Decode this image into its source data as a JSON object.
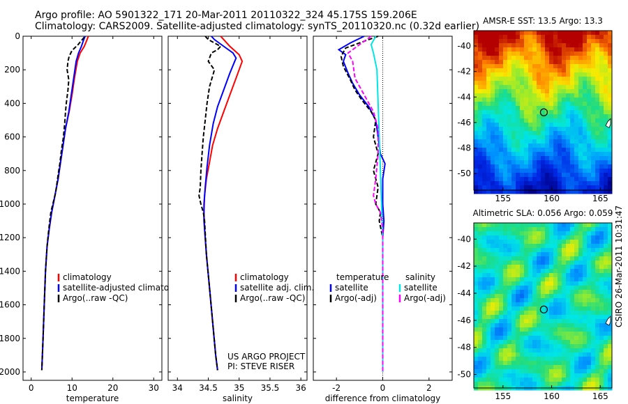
{
  "header": {
    "line1": "Argo profile: AO 5901322_171 20-Mar-2011 20110322_324 45.175S 159.206E",
    "line2": "Climatology: CARS2009. Satellite-adjusted climatology: synTS_20110320.nc (0.32d earlier)"
  },
  "side_label": "CSIRO 26-Mar-2011 10:31:47",
  "colors": {
    "climatology": "#ff0000",
    "satellite": "#0000ff",
    "argo": "#000000",
    "sal_satellite": "#00e5e5",
    "sal_argo": "#ff00ff"
  },
  "chart_data": [
    {
      "type": "line",
      "xlabel": "temperature",
      "xlim": [
        -2,
        32
      ],
      "xticks": [
        "0",
        "10",
        "20",
        "30"
      ],
      "ylim": [
        2050,
        0
      ],
      "yticks": [
        "0",
        "200",
        "400",
        "600",
        "800",
        "1000",
        "1200",
        "1400",
        "1600",
        "1800",
        "2000"
      ],
      "legend": [
        "climatology",
        "satellite-adjusted climatology",
        "Argo(..raw -QC)"
      ],
      "series": [
        {
          "name": "climatology",
          "color": "#ff0000",
          "dash": false,
          "points": [
            [
              14.0,
              0
            ],
            [
              13.6,
              25
            ],
            [
              13.0,
              60
            ],
            [
              12.0,
              100
            ],
            [
              11.3,
              150
            ],
            [
              10.6,
              250
            ],
            [
              10.0,
              350
            ],
            [
              9.3,
              450
            ],
            [
              8.4,
              550
            ],
            [
              7.8,
              650
            ],
            [
              7.2,
              750
            ],
            [
              6.6,
              850
            ],
            [
              5.8,
              950
            ],
            [
              5.0,
              1050
            ],
            [
              4.4,
              1150
            ],
            [
              3.9,
              1250
            ],
            [
              3.5,
              1400
            ],
            [
              3.2,
              1600
            ],
            [
              2.9,
              1800
            ],
            [
              2.6,
              1990
            ]
          ]
        },
        {
          "name": "satellite-adjusted climatology",
          "color": "#0000ff",
          "dash": false,
          "points": [
            [
              13.2,
              0
            ],
            [
              12.8,
              25
            ],
            [
              12.3,
              60
            ],
            [
              11.6,
              100
            ],
            [
              11.0,
              150
            ],
            [
              10.4,
              250
            ],
            [
              9.8,
              350
            ],
            [
              9.2,
              450
            ],
            [
              8.4,
              550
            ],
            [
              7.8,
              650
            ],
            [
              7.2,
              750
            ],
            [
              6.6,
              850
            ],
            [
              5.8,
              950
            ],
            [
              5.0,
              1050
            ],
            [
              4.4,
              1150
            ],
            [
              3.9,
              1250
            ],
            [
              3.5,
              1400
            ],
            [
              3.2,
              1600
            ],
            [
              2.9,
              1800
            ],
            [
              2.6,
              1990
            ]
          ]
        },
        {
          "name": "Argo(..raw -QC)",
          "color": "#000000",
          "dash": true,
          "points": [
            [
              13.0,
              5
            ],
            [
              11.5,
              50
            ],
            [
              10.0,
              85
            ],
            [
              9.3,
              120
            ],
            [
              9.0,
              150
            ],
            [
              8.8,
              200
            ],
            [
              9.2,
              260
            ],
            [
              9.0,
              320
            ],
            [
              8.6,
              400
            ],
            [
              8.4,
              450
            ],
            [
              8.2,
              520
            ],
            [
              7.9,
              600
            ],
            [
              7.4,
              680
            ],
            [
              7.0,
              760
            ],
            [
              6.5,
              840
            ],
            [
              6.0,
              930
            ],
            [
              5.3,
              1000
            ],
            [
              4.8,
              1050
            ],
            [
              4.3,
              1150
            ],
            [
              3.9,
              1250
            ],
            [
              3.5,
              1400
            ],
            [
              3.2,
              1600
            ],
            [
              2.9,
              1800
            ],
            [
              2.6,
              1990
            ]
          ]
        }
      ]
    },
    {
      "type": "line",
      "xlabel": "salinity",
      "xlim": [
        33.85,
        36.1
      ],
      "xticks": [
        "34",
        "34.5",
        "35",
        "35.5",
        "36"
      ],
      "ylim": [
        2050,
        0
      ],
      "legend": [
        "climatology",
        "satellite adj. clim.",
        "Argo(..raw -QC)"
      ],
      "annotation": [
        "US ARGO PROJECT",
        "PI: STEVE RISER"
      ],
      "series": [
        {
          "name": "climatology",
          "color": "#ff0000",
          "dash": false,
          "points": [
            [
              34.7,
              0
            ],
            [
              34.75,
              20
            ],
            [
              34.85,
              60
            ],
            [
              35.0,
              110
            ],
            [
              35.05,
              150
            ],
            [
              34.95,
              250
            ],
            [
              34.85,
              350
            ],
            [
              34.75,
              450
            ],
            [
              34.65,
              550
            ],
            [
              34.57,
              650
            ],
            [
              34.52,
              750
            ],
            [
              34.47,
              850
            ],
            [
              34.44,
              950
            ],
            [
              34.43,
              1050
            ],
            [
              34.44,
              1150
            ],
            [
              34.47,
              1300
            ],
            [
              34.52,
              1500
            ],
            [
              34.57,
              1700
            ],
            [
              34.62,
              1900
            ],
            [
              34.65,
              1990
            ]
          ]
        },
        {
          "name": "satellite adj. clim.",
          "color": "#0000ff",
          "dash": false,
          "points": [
            [
              34.55,
              0
            ],
            [
              34.6,
              20
            ],
            [
              34.75,
              60
            ],
            [
              34.9,
              100
            ],
            [
              34.95,
              130
            ],
            [
              34.85,
              220
            ],
            [
              34.75,
              320
            ],
            [
              34.65,
              420
            ],
            [
              34.58,
              520
            ],
            [
              34.52,
              650
            ],
            [
              34.48,
              780
            ],
            [
              34.45,
              900
            ],
            [
              34.43,
              1000
            ],
            [
              34.43,
              1100
            ],
            [
              34.45,
              1200
            ],
            [
              34.47,
              1300
            ],
            [
              34.52,
              1500
            ],
            [
              34.57,
              1700
            ],
            [
              34.62,
              1900
            ],
            [
              34.65,
              1990
            ]
          ]
        },
        {
          "name": "Argo(..raw -QC)",
          "color": "#000000",
          "dash": true,
          "points": [
            [
              34.45,
              0
            ],
            [
              34.5,
              20
            ],
            [
              34.7,
              60
            ],
            [
              34.65,
              80
            ],
            [
              34.55,
              100
            ],
            [
              34.5,
              150
            ],
            [
              34.6,
              200
            ],
            [
              34.52,
              300
            ],
            [
              34.48,
              400
            ],
            [
              34.45,
              500
            ],
            [
              34.42,
              600
            ],
            [
              34.4,
              700
            ],
            [
              34.38,
              800
            ],
            [
              34.37,
              900
            ],
            [
              34.35,
              950
            ],
            [
              34.38,
              1000
            ],
            [
              34.42,
              1050
            ],
            [
              34.44,
              1100
            ],
            [
              34.47,
              1300
            ],
            [
              34.52,
              1500
            ],
            [
              34.57,
              1700
            ],
            [
              34.62,
              1900
            ],
            [
              34.65,
              1990
            ]
          ]
        }
      ]
    },
    {
      "type": "line",
      "xlabel": "difference from climatology",
      "xlim": [
        -3.0,
        3.0
      ],
      "xticks": [
        "-2",
        "0",
        "2"
      ],
      "ylim": [
        2050,
        0
      ],
      "legend_groups": [
        {
          "title": "temperature",
          "items": [
            "satellite",
            "Argo(-adj)"
          ]
        },
        {
          "title": "salinity",
          "items": [
            "satellite",
            "Argo(-adj)"
          ]
        }
      ],
      "series": [
        {
          "name": "satellite",
          "group": "temperature",
          "color": "#0000ff",
          "dash": false,
          "points": [
            [
              -0.8,
              0
            ],
            [
              -1.4,
              40
            ],
            [
              -1.9,
              80
            ],
            [
              -1.6,
              110
            ],
            [
              -1.7,
              150
            ],
            [
              -1.5,
              220
            ],
            [
              -1.3,
              280
            ],
            [
              -1.0,
              350
            ],
            [
              -0.6,
              420
            ],
            [
              -0.3,
              500
            ],
            [
              -0.2,
              600
            ],
            [
              -0.1,
              700
            ],
            [
              0.1,
              760
            ],
            [
              0.0,
              850
            ],
            [
              0.0,
              1000
            ],
            [
              0.05,
              1100
            ],
            [
              0.0,
              1200
            ],
            [
              0.0,
              1500
            ],
            [
              0.0,
              2000
            ]
          ]
        },
        {
          "name": "Argo(-adj)",
          "group": "temperature",
          "color": "#000000",
          "dash": true,
          "points": [
            [
              -0.2,
              0
            ],
            [
              -1.0,
              40
            ],
            [
              -1.6,
              70
            ],
            [
              -1.8,
              120
            ],
            [
              -1.7,
              180
            ],
            [
              -1.4,
              260
            ],
            [
              -1.2,
              320
            ],
            [
              -0.9,
              380
            ],
            [
              -0.5,
              450
            ],
            [
              -0.3,
              500
            ],
            [
              -0.4,
              600
            ],
            [
              -0.2,
              700
            ],
            [
              -0.4,
              800
            ],
            [
              -0.2,
              900
            ],
            [
              -0.3,
              1000
            ],
            [
              -0.1,
              1050
            ],
            [
              -0.15,
              1100
            ],
            [
              0.0,
              1200
            ],
            [
              0.0,
              1500
            ],
            [
              0.0,
              2000
            ]
          ]
        },
        {
          "name": "satellite",
          "group": "salinity",
          "color": "#00e5e5",
          "dash": false,
          "points": [
            [
              -0.3,
              0
            ],
            [
              -0.5,
              50
            ],
            [
              -0.4,
              100
            ],
            [
              -0.25,
              200
            ],
            [
              -0.2,
              400
            ],
            [
              -0.15,
              600
            ],
            [
              -0.1,
              800
            ],
            [
              -0.05,
              1000
            ],
            [
              0.0,
              1200
            ],
            [
              0.0,
              1500
            ],
            [
              0.0,
              2000
            ]
          ]
        },
        {
          "name": "Argo(-adj)",
          "group": "salinity",
          "color": "#ff00ff",
          "dash": true,
          "points": [
            [
              -0.5,
              0
            ],
            [
              -1.0,
              50
            ],
            [
              -1.5,
              100
            ],
            [
              -1.3,
              150
            ],
            [
              -1.2,
              250
            ],
            [
              -0.8,
              350
            ],
            [
              -0.4,
              450
            ],
            [
              -0.2,
              550
            ],
            [
              -0.2,
              700
            ],
            [
              -0.3,
              850
            ],
            [
              -0.4,
              950
            ],
            [
              -0.3,
              1000
            ],
            [
              -0.1,
              1050
            ],
            [
              0.0,
              1150
            ],
            [
              0.0,
              1500
            ],
            [
              0.0,
              2000
            ]
          ]
        }
      ]
    },
    {
      "type": "heatmap",
      "title": "AMSR-E SST: 13.5 Argo: 13.3",
      "xticks": [
        "155",
        "160",
        "165"
      ],
      "yticks": [
        "-40",
        "-42",
        "-44",
        "-46",
        "-48",
        "-50"
      ],
      "xlim": [
        152,
        166.2
      ],
      "ylim": [
        -51.3,
        -38.8
      ],
      "marker": {
        "lon": 159.2,
        "lat": -45.2
      }
    },
    {
      "type": "heatmap",
      "title": "Altimetric SLA: 0.056 Argo: 0.059",
      "xticks": [
        "155",
        "160",
        "165"
      ],
      "yticks": [
        "-40",
        "-42",
        "-44",
        "-46",
        "-48",
        "-50"
      ],
      "xlim": [
        152,
        166.2
      ],
      "ylim": [
        -51.0,
        -38.8
      ],
      "marker": {
        "lon": 159.2,
        "lat": -45.2
      }
    }
  ]
}
